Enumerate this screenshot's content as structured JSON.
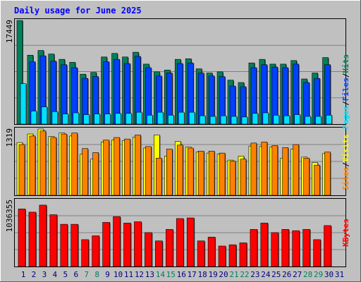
{
  "page": {
    "background": "#c0c0c0"
  },
  "chart_data": {
    "type": "bar",
    "title": "Daily usage for June 2025",
    "categories": [
      "1",
      "2",
      "3",
      "4",
      "5",
      "6",
      "7",
      "8",
      "9",
      "10",
      "11",
      "12",
      "13",
      "14",
      "15",
      "16",
      "17",
      "18",
      "19",
      "20",
      "21",
      "22",
      "23",
      "24",
      "25",
      "26",
      "27",
      "28",
      "29",
      "30",
      "31"
    ],
    "weekend_days": [
      7,
      8,
      14,
      15,
      21,
      22,
      28,
      29
    ],
    "colors": {
      "hits": "#00805c",
      "files": "#0040ff",
      "pages": "#00e0ff",
      "visits": "#ffff00",
      "sites": "#ff8000",
      "kbytes": "#ff0000",
      "title": "#0000ff",
      "weekend_label": "#00805c",
      "weekday_label": "#000080",
      "slash": "#000000"
    },
    "panels": [
      {
        "id": "hits_files_pages",
        "ymax_label": "17449",
        "ymax": 17449,
        "series": [
          {
            "name": "Hits",
            "values": [
              17449,
              11600,
              12400,
              11800,
              10900,
              10400,
              8400,
              8700,
              11300,
              11900,
              11300,
              12100,
              10100,
              8800,
              9100,
              10900,
              11000,
              9300,
              8600,
              8800,
              7400,
              7000,
              10300,
              10900,
              10100,
              10100,
              10700,
              7600,
              8600,
              11200,
              0
            ]
          },
          {
            "name": "Files",
            "values": [
              0,
              10500,
              11500,
              10600,
              10000,
              9500,
              7700,
              8000,
              10500,
              10900,
              10200,
              11400,
              9500,
              8100,
              8600,
              10200,
              10300,
              8600,
              8100,
              8000,
              6400,
              6300,
              9500,
              10000,
              9600,
              9500,
              10100,
              7000,
              7700,
              10000,
              0
            ]
          },
          {
            "name": "Pages",
            "values": [
              6800,
              2200,
              2900,
              2100,
              1700,
              1900,
              1600,
              1700,
              1700,
              1800,
              1800,
              2000,
              1500,
              2000,
              1500,
              2000,
              2000,
              1400,
              1300,
              1400,
              1300,
              1200,
              1800,
              1900,
              1500,
              1400,
              1600,
              1300,
              1300,
              1500,
              0
            ]
          }
        ],
        "labels": [
          "Pages",
          "Files",
          "Hits"
        ]
      },
      {
        "id": "sites_visits",
        "ymax_label": "1319",
        "ymax": 1319,
        "series": [
          {
            "name": "Visits",
            "values": [
              1050,
              1220,
              1319,
              1170,
              1240,
              1180,
              820,
              720,
              1060,
              1100,
              1090,
              1160,
              940,
              1200,
              780,
              1070,
              960,
              860,
              840,
              820,
              700,
              780,
              980,
              970,
              960,
              740,
              920,
              760,
              650,
              830,
              0
            ]
          },
          {
            "name": "Sites",
            "values": [
              1010,
              1180,
              1280,
              1150,
              1220,
              1240,
              930,
              850,
              1100,
              1150,
              1120,
              1200,
              970,
              740,
              920,
              1000,
              940,
              880,
              880,
              840,
              680,
              720,
              1040,
              1060,
              990,
              950,
              1010,
              740,
              600,
              860,
              0
            ]
          }
        ],
        "labels": [
          "Sites",
          "Visits"
        ]
      },
      {
        "id": "kbytes",
        "ymax_label": "1036355",
        "ymax": 1036355,
        "series": [
          {
            "name": "KBytes",
            "values": [
              900000,
              850000,
              960000,
              810000,
              660000,
              660000,
              420000,
              480000,
              690000,
              780000,
              680000,
              700000,
              530000,
              400000,
              580000,
              750000,
              760000,
              400000,
              460000,
              320000,
              340000,
              370000,
              580000,
              680000,
              530000,
              580000,
              560000,
              580000,
              420000,
              640000,
              0
            ]
          }
        ],
        "labels": [
          "KBytes"
        ]
      }
    ]
  }
}
